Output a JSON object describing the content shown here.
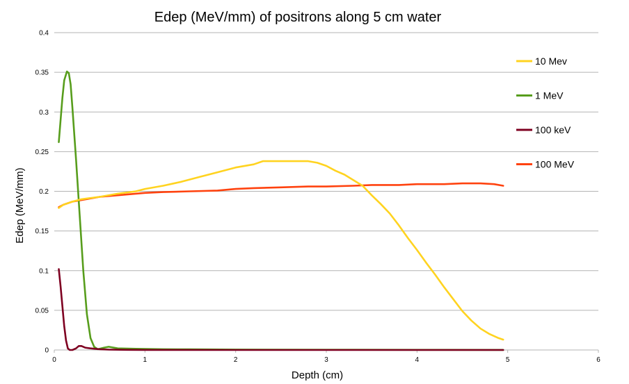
{
  "chart_data": {
    "type": "line",
    "title": "Edep (MeV/mm) of positrons along 5 cm water",
    "xlabel": "Depth (cm)",
    "ylabel": "Edep (MeV/mm)",
    "xlim": [
      0,
      6
    ],
    "ylim": [
      0,
      0.4
    ],
    "xticks": [
      "0",
      "1",
      "2",
      "3",
      "4",
      "5",
      "6"
    ],
    "yticks": [
      "0",
      "0.05",
      "0.1",
      "0.15",
      "0.2",
      "0.25",
      "0.3",
      "0.35",
      "0.4"
    ],
    "grid": "horizontal",
    "legend_position": "right",
    "series": [
      {
        "name": "10 Mev",
        "color": "#ffd320",
        "points": [
          [
            0.05,
            0.179
          ],
          [
            0.1,
            0.183
          ],
          [
            0.2,
            0.187
          ],
          [
            0.3,
            0.19
          ],
          [
            0.5,
            0.193
          ],
          [
            0.7,
            0.197
          ],
          [
            0.9,
            0.2
          ],
          [
            1.0,
            0.203
          ],
          [
            1.2,
            0.207
          ],
          [
            1.4,
            0.212
          ],
          [
            1.6,
            0.218
          ],
          [
            1.8,
            0.224
          ],
          [
            2.0,
            0.23
          ],
          [
            2.2,
            0.234
          ],
          [
            2.3,
            0.238
          ],
          [
            2.4,
            0.238
          ],
          [
            2.6,
            0.238
          ],
          [
            2.8,
            0.238
          ],
          [
            2.9,
            0.236
          ],
          [
            3.0,
            0.232
          ],
          [
            3.1,
            0.226
          ],
          [
            3.2,
            0.221
          ],
          [
            3.3,
            0.214
          ],
          [
            3.4,
            0.207
          ],
          [
            3.5,
            0.195
          ],
          [
            3.6,
            0.184
          ],
          [
            3.7,
            0.172
          ],
          [
            3.8,
            0.157
          ],
          [
            3.9,
            0.141
          ],
          [
            4.0,
            0.126
          ],
          [
            4.1,
            0.11
          ],
          [
            4.2,
            0.095
          ],
          [
            4.3,
            0.079
          ],
          [
            4.4,
            0.064
          ],
          [
            4.5,
            0.049
          ],
          [
            4.6,
            0.037
          ],
          [
            4.7,
            0.027
          ],
          [
            4.8,
            0.02
          ],
          [
            4.9,
            0.015
          ],
          [
            4.95,
            0.013
          ]
        ]
      },
      {
        "name": "1 MeV",
        "color": "#579d1c",
        "points": [
          [
            0.05,
            0.262
          ],
          [
            0.07,
            0.29
          ],
          [
            0.09,
            0.318
          ],
          [
            0.11,
            0.34
          ],
          [
            0.14,
            0.351
          ],
          [
            0.16,
            0.349
          ],
          [
            0.18,
            0.335
          ],
          [
            0.2,
            0.305
          ],
          [
            0.24,
            0.24
          ],
          [
            0.28,
            0.17
          ],
          [
            0.32,
            0.1
          ],
          [
            0.36,
            0.045
          ],
          [
            0.4,
            0.015
          ],
          [
            0.44,
            0.004
          ],
          [
            0.48,
            0.001
          ],
          [
            0.55,
            0.003
          ],
          [
            0.6,
            0.004
          ],
          [
            0.7,
            0.002
          ],
          [
            0.9,
            0.0015
          ],
          [
            1.2,
            0.001
          ],
          [
            1.5,
            0.0008
          ],
          [
            2.0,
            0.0005
          ],
          [
            3.0,
            0.0003
          ],
          [
            4.0,
            0.0002
          ],
          [
            4.95,
            0.0001
          ]
        ]
      },
      {
        "name": "100 keV",
        "color": "#7e0021",
        "points": [
          [
            0.05,
            0.102
          ],
          [
            0.07,
            0.08
          ],
          [
            0.09,
            0.055
          ],
          [
            0.11,
            0.03
          ],
          [
            0.13,
            0.012
          ],
          [
            0.15,
            0.002
          ],
          [
            0.17,
            0.0
          ],
          [
            0.2,
            0.0
          ],
          [
            0.24,
            0.002
          ],
          [
            0.27,
            0.005
          ],
          [
            0.3,
            0.005
          ],
          [
            0.34,
            0.003
          ],
          [
            0.4,
            0.002
          ],
          [
            0.5,
            0.001
          ],
          [
            0.6,
            0.0005
          ],
          [
            0.8,
            0.0002
          ],
          [
            1.0,
            0.0001
          ],
          [
            2.0,
            0.0
          ],
          [
            4.95,
            0.0
          ]
        ]
      },
      {
        "name": "100 MeV",
        "color": "#ff420e",
        "points": [
          [
            0.05,
            0.18
          ],
          [
            0.1,
            0.183
          ],
          [
            0.2,
            0.187
          ],
          [
            0.3,
            0.189
          ],
          [
            0.5,
            0.193
          ],
          [
            0.7,
            0.195
          ],
          [
            0.9,
            0.197
          ],
          [
            1.0,
            0.198
          ],
          [
            1.2,
            0.199
          ],
          [
            1.5,
            0.2
          ],
          [
            1.8,
            0.201
          ],
          [
            2.0,
            0.203
          ],
          [
            2.2,
            0.204
          ],
          [
            2.5,
            0.205
          ],
          [
            2.8,
            0.206
          ],
          [
            3.0,
            0.206
          ],
          [
            3.3,
            0.207
          ],
          [
            3.5,
            0.208
          ],
          [
            3.8,
            0.208
          ],
          [
            4.0,
            0.209
          ],
          [
            4.3,
            0.209
          ],
          [
            4.5,
            0.21
          ],
          [
            4.7,
            0.21
          ],
          [
            4.85,
            0.209
          ],
          [
            4.95,
            0.207
          ]
        ]
      }
    ]
  }
}
